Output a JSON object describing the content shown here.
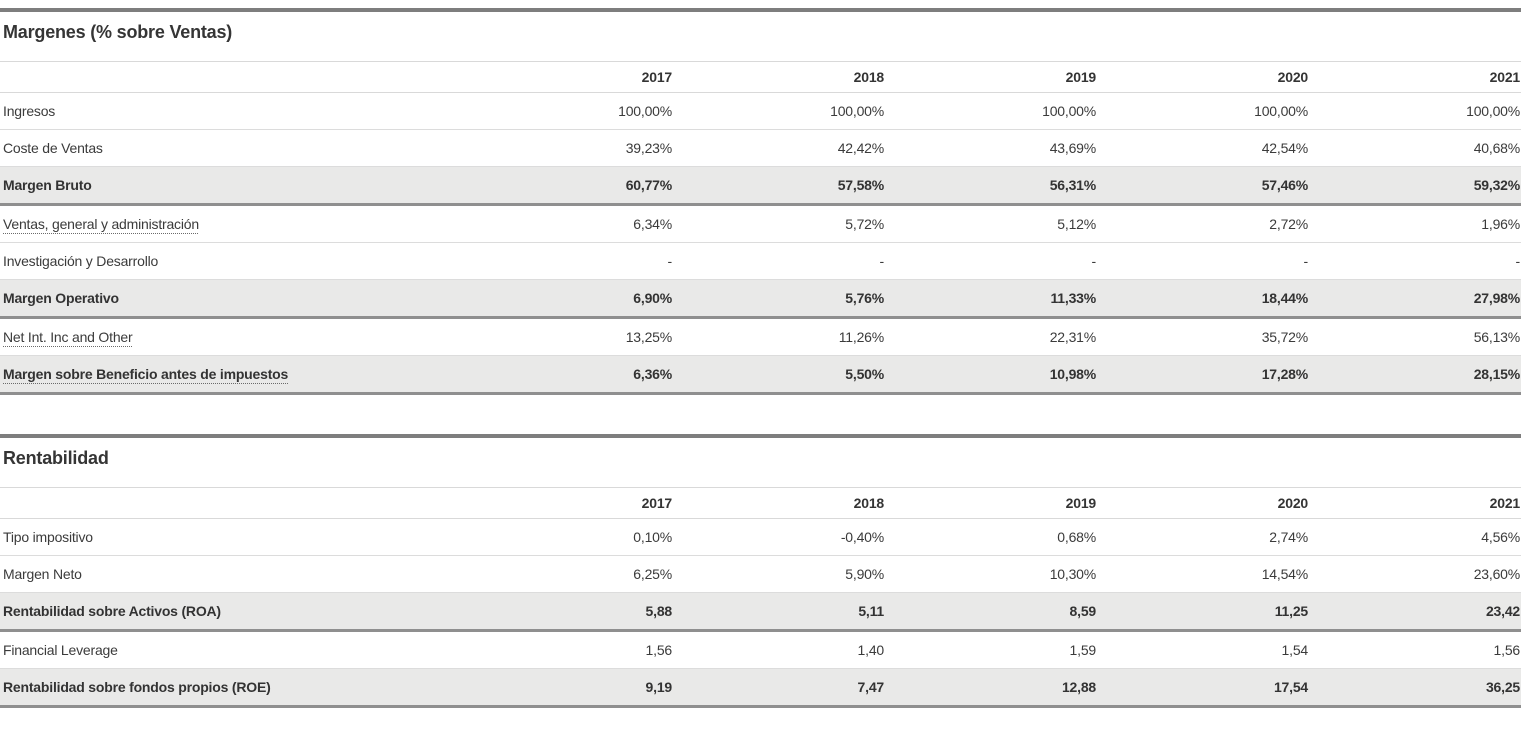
{
  "page": {
    "background": "#ffffff",
    "text_color": "#3b3b3b",
    "section_rule_color": "#7e7e7e",
    "highlight_row_bg": "#e9e9e8",
    "highlight_row_border": "#8f8f8f",
    "row_separator_color": "#dcdcdc",
    "header_line_color": "#d9d9d9"
  },
  "sections": [
    {
      "title": "Margenes (% sobre Ventas)",
      "years": [
        "2017",
        "2018",
        "2019",
        "2020",
        "2021"
      ],
      "rows": [
        {
          "label": "Ingresos",
          "values": [
            "100,00%",
            "100,00%",
            "100,00%",
            "100,00%",
            "100,00%"
          ],
          "highlight": false,
          "dotted": false
        },
        {
          "label": "Coste de Ventas",
          "values": [
            "39,23%",
            "42,42%",
            "43,69%",
            "42,54%",
            "40,68%"
          ],
          "highlight": false,
          "dotted": false
        },
        {
          "label": "Margen Bruto",
          "values": [
            "60,77%",
            "57,58%",
            "56,31%",
            "57,46%",
            "59,32%"
          ],
          "highlight": true,
          "dotted": false
        },
        {
          "label": "Ventas, general y administración",
          "values": [
            "6,34%",
            "5,72%",
            "5,12%",
            "2,72%",
            "1,96%"
          ],
          "highlight": false,
          "dotted": true
        },
        {
          "label": "Investigación y Desarrollo",
          "values": [
            "-",
            "-",
            "-",
            "-",
            "-"
          ],
          "highlight": false,
          "dotted": false
        },
        {
          "label": "Margen Operativo",
          "values": [
            "6,90%",
            "5,76%",
            "11,33%",
            "18,44%",
            "27,98%"
          ],
          "highlight": true,
          "dotted": false
        },
        {
          "label": "Net Int. Inc and Other",
          "values": [
            "13,25%",
            "11,26%",
            "22,31%",
            "35,72%",
            "56,13%"
          ],
          "highlight": false,
          "dotted": true
        },
        {
          "label": "Margen sobre Beneficio antes de impuestos",
          "values": [
            "6,36%",
            "5,50%",
            "10,98%",
            "17,28%",
            "28,15%"
          ],
          "highlight": true,
          "dotted": true
        }
      ]
    },
    {
      "title": "Rentabilidad",
      "years": [
        "2017",
        "2018",
        "2019",
        "2020",
        "2021"
      ],
      "rows": [
        {
          "label": "Tipo impositivo",
          "values": [
            "0,10%",
            "-0,40%",
            "0,68%",
            "2,74%",
            "4,56%"
          ],
          "highlight": false,
          "dotted": false
        },
        {
          "label": "Margen Neto",
          "values": [
            "6,25%",
            "5,90%",
            "10,30%",
            "14,54%",
            "23,60%"
          ],
          "highlight": false,
          "dotted": false
        },
        {
          "label": "Rentabilidad sobre Activos (ROA)",
          "values": [
            "5,88",
            "5,11",
            "8,59",
            "11,25",
            "23,42"
          ],
          "highlight": true,
          "dotted": false
        },
        {
          "label": "Financial Leverage",
          "values": [
            "1,56",
            "1,40",
            "1,59",
            "1,54",
            "1,56"
          ],
          "highlight": false,
          "dotted": false
        },
        {
          "label": "Rentabilidad sobre fondos propios (ROE)",
          "values": [
            "9,19",
            "7,47",
            "12,88",
            "17,54",
            "36,25"
          ],
          "highlight": true,
          "dotted": false
        }
      ]
    }
  ]
}
